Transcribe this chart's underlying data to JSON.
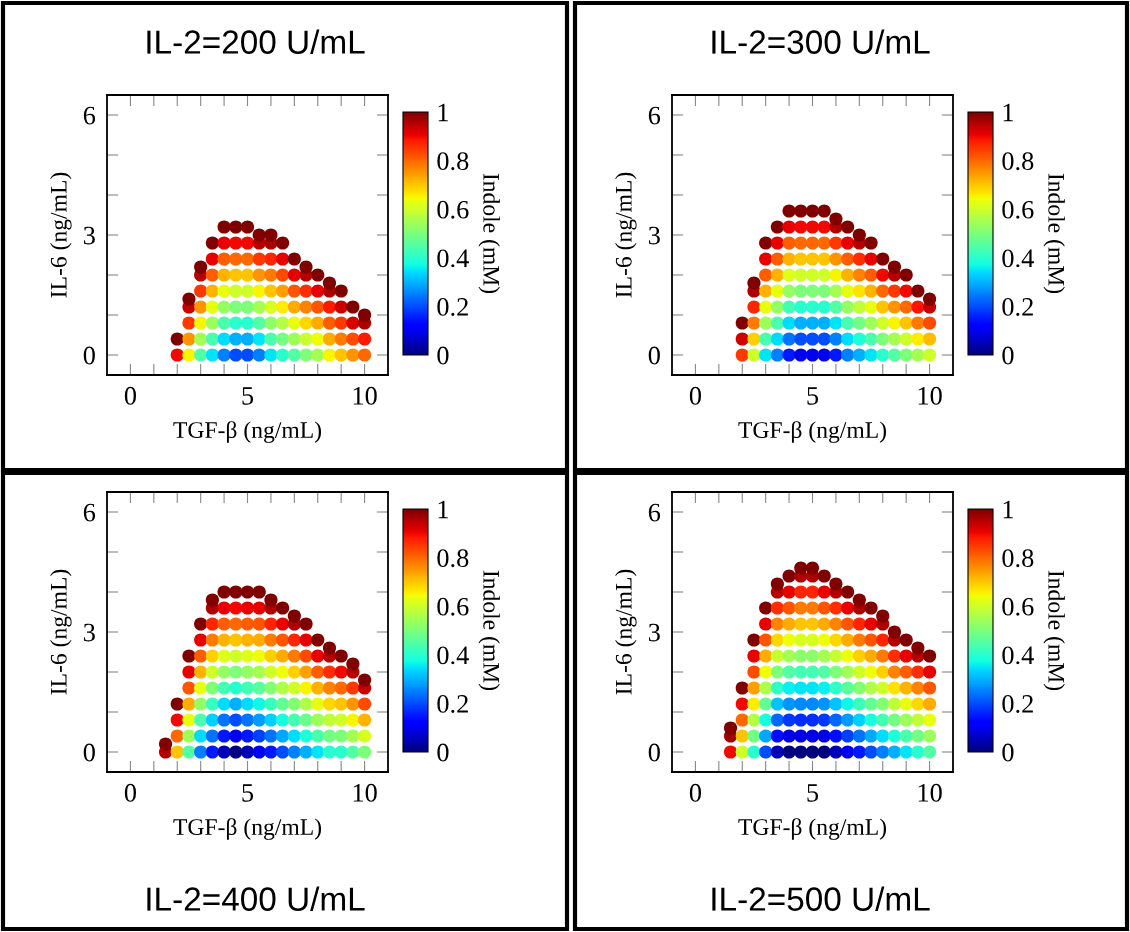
{
  "chart_data": [
    {
      "type": "scatter",
      "title": "IL-2=200 U/mL",
      "xlabel": "TGF-β (ng/mL)",
      "ylabel": "IL-6 (ng/mL)",
      "clabel": "Indole (mM)",
      "xlim": [
        -1,
        11
      ],
      "ylim": [
        -0.5,
        6.5
      ],
      "clim": [
        0,
        1
      ],
      "xticks": [
        0,
        {
          "value": 1,
          "label": null
        },
        {
          "value": 2,
          "label": null
        },
        {
          "value": 3,
          "label": null
        },
        {
          "value": 4,
          "label": null
        },
        5,
        {
          "value": 6,
          "label": null
        },
        {
          "value": 7,
          "label": null
        },
        {
          "value": 8,
          "label": null
        },
        {
          "value": 9,
          "label": null
        },
        10
      ],
      "yticks": [
        0,
        {
          "value": 1,
          "label": null
        },
        {
          "value": 2,
          "label": null
        },
        3,
        {
          "value": 4,
          "label": null
        },
        {
          "value": 5,
          "label": null
        },
        6
      ],
      "cticks": [
        0,
        0.2,
        0.4,
        0.6,
        0.8,
        1
      ],
      "x": [
        2,
        2,
        2.5,
        2.5,
        2.5,
        2.5,
        2.5,
        3,
        3,
        3,
        3,
        3,
        3,
        3,
        3.5,
        3.5,
        3.5,
        3.5,
        3.5,
        3.5,
        3.5,
        3.5,
        4,
        4,
        4,
        4,
        4,
        4,
        4,
        4,
        4,
        4.5,
        4.5,
        4.5,
        4.5,
        4.5,
        4.5,
        4.5,
        4.5,
        4.5,
        5,
        5,
        5,
        5,
        5,
        5,
        5,
        5,
        5,
        5.5,
        5.5,
        5.5,
        5.5,
        5.5,
        5.5,
        5.5,
        5.5,
        5.5,
        6,
        6,
        6,
        6,
        6,
        6,
        6,
        6,
        6,
        6.5,
        6.5,
        6.5,
        6.5,
        6.5,
        6.5,
        6.5,
        6.5,
        7,
        7,
        7,
        7,
        7,
        7,
        7,
        7.5,
        7.5,
        7.5,
        7.5,
        7.5,
        7.5,
        7.5,
        8,
        8,
        8,
        8,
        8,
        8,
        8.5,
        8.5,
        8.5,
        8.5,
        8.5,
        8.5,
        9,
        9,
        9,
        9,
        9,
        9.5,
        9.5,
        9.5,
        9.5,
        10,
        10,
        10,
        10
      ],
      "values": [
        0,
        0.4,
        0,
        0.4,
        0.8,
        1.2,
        1.4,
        0,
        0.4,
        0.8,
        1.2,
        1.6,
        2.0,
        2.2,
        0,
        0.4,
        0.8,
        1.2,
        1.6,
        2.0,
        2.4,
        2.8,
        0,
        0.4,
        0.8,
        1.2,
        1.6,
        2.0,
        2.4,
        2.8,
        3.2,
        0,
        0.4,
        0.8,
        1.2,
        1.6,
        2.0,
        2.4,
        2.8,
        3.2,
        0,
        0.4,
        0.8,
        1.2,
        1.6,
        2.0,
        2.4,
        2.8,
        3.2,
        0,
        0.4,
        0.8,
        1.2,
        1.6,
        2.0,
        2.4,
        2.8,
        3.0,
        0,
        0.4,
        0.8,
        1.2,
        1.6,
        2.0,
        2.4,
        2.8,
        3.0,
        0,
        0.4,
        0.8,
        1.2,
        1.6,
        2.0,
        2.4,
        2.8,
        0,
        0.4,
        0.8,
        1.2,
        1.6,
        2.0,
        2.4,
        0,
        0.4,
        0.8,
        1.2,
        1.6,
        2.0,
        2.2,
        0,
        0.4,
        0.8,
        1.2,
        1.6,
        2.0,
        0,
        0.4,
        0.8,
        1.2,
        1.6,
        1.8,
        0,
        0.4,
        0.8,
        1.2,
        1.6,
        0,
        0.4,
        0.8,
        1.2,
        0,
        0.4,
        0.8,
        1.0
      ],
      "cvalues": [
        0.9,
        1,
        0.65,
        0.75,
        0.85,
        0.94,
        1,
        0.45,
        0.55,
        0.65,
        0.75,
        0.85,
        0.95,
        1,
        0.35,
        0.44,
        0.54,
        0.63,
        0.72,
        0.81,
        0.91,
        1,
        0.25,
        0.34,
        0.44,
        0.53,
        0.63,
        0.72,
        0.81,
        0.91,
        1,
        0.2,
        0.3,
        0.4,
        0.5,
        0.6,
        0.7,
        0.8,
        0.9,
        1,
        0.2,
        0.3,
        0.4,
        0.5,
        0.6,
        0.7,
        0.8,
        0.9,
        1,
        0.25,
        0.35,
        0.45,
        0.55,
        0.65,
        0.75,
        0.85,
        0.95,
        1,
        0.35,
        0.44,
        0.52,
        0.61,
        0.7,
        0.78,
        0.87,
        0.96,
        1,
        0.4,
        0.49,
        0.57,
        0.66,
        0.74,
        0.83,
        0.91,
        1,
        0.45,
        0.54,
        0.63,
        0.73,
        0.82,
        0.91,
        1,
        0.5,
        0.59,
        0.68,
        0.77,
        0.86,
        0.95,
        1,
        0.55,
        0.64,
        0.73,
        0.82,
        0.91,
        1,
        0.65,
        0.73,
        0.81,
        0.88,
        0.96,
        1,
        0.7,
        0.78,
        0.85,
        0.93,
        1,
        0.75,
        0.83,
        0.92,
        1,
        0.8,
        0.88,
        0.96,
        1
      ]
    },
    {
      "type": "scatter",
      "title": "IL-2=300 U/mL",
      "xlabel": "TGF-β (ng/mL)",
      "ylabel": "IL-6 (ng/mL)",
      "clabel": "Indole (mM)",
      "xlim": [
        -1,
        11
      ],
      "ylim": [
        -0.5,
        6.5
      ],
      "clim": [
        0,
        1
      ],
      "xticks": [
        0,
        {
          "value": 1,
          "label": null
        },
        {
          "value": 2,
          "label": null
        },
        {
          "value": 3,
          "label": null
        },
        {
          "value": 4,
          "label": null
        },
        5,
        {
          "value": 6,
          "label": null
        },
        {
          "value": 7,
          "label": null
        },
        {
          "value": 8,
          "label": null
        },
        {
          "value": 9,
          "label": null
        },
        10
      ],
      "yticks": [
        0,
        {
          "value": 1,
          "label": null
        },
        {
          "value": 2,
          "label": null
        },
        3,
        {
          "value": 4,
          "label": null
        },
        {
          "value": 5,
          "label": null
        },
        6
      ],
      "cticks": [
        0,
        0.2,
        0.4,
        0.6,
        0.8,
        1
      ],
      "x": [
        2,
        2,
        2,
        2.5,
        2.5,
        2.5,
        2.5,
        2.5,
        2.5,
        3,
        3,
        3,
        3,
        3,
        3,
        3,
        3,
        3.5,
        3.5,
        3.5,
        3.5,
        3.5,
        3.5,
        3.5,
        3.5,
        3.5,
        4,
        4,
        4,
        4,
        4,
        4,
        4,
        4,
        4,
        4,
        4.5,
        4.5,
        4.5,
        4.5,
        4.5,
        4.5,
        4.5,
        4.5,
        4.5,
        4.5,
        5,
        5,
        5,
        5,
        5,
        5,
        5,
        5,
        5,
        5,
        5.5,
        5.5,
        5.5,
        5.5,
        5.5,
        5.5,
        5.5,
        5.5,
        5.5,
        5.5,
        6,
        6,
        6,
        6,
        6,
        6,
        6,
        6,
        6,
        6,
        6.5,
        6.5,
        6.5,
        6.5,
        6.5,
        6.5,
        6.5,
        6.5,
        6.5,
        7,
        7,
        7,
        7,
        7,
        7,
        7,
        7,
        7,
        7.5,
        7.5,
        7.5,
        7.5,
        7.5,
        7.5,
        7.5,
        7.5,
        8,
        8,
        8,
        8,
        8,
        8,
        8,
        8.5,
        8.5,
        8.5,
        8.5,
        8.5,
        8.5,
        8.5,
        9,
        9,
        9,
        9,
        9,
        9,
        9.5,
        9.5,
        9.5,
        9.5,
        9.5,
        10,
        10,
        10,
        10,
        10
      ],
      "values": [
        0,
        0.4,
        0.8,
        0,
        0.4,
        0.8,
        1.2,
        1.6,
        1.8,
        0,
        0.4,
        0.8,
        1.2,
        1.6,
        2.0,
        2.4,
        2.8,
        0,
        0.4,
        0.8,
        1.2,
        1.6,
        2.0,
        2.4,
        2.8,
        3.2,
        0,
        0.4,
        0.8,
        1.2,
        1.6,
        2.0,
        2.4,
        2.8,
        3.2,
        3.6,
        0,
        0.4,
        0.8,
        1.2,
        1.6,
        2.0,
        2.4,
        2.8,
        3.2,
        3.6,
        0,
        0.4,
        0.8,
        1.2,
        1.6,
        2.0,
        2.4,
        2.8,
        3.2,
        3.6,
        0,
        0.4,
        0.8,
        1.2,
        1.6,
        2.0,
        2.4,
        2.8,
        3.2,
        3.6,
        0,
        0.4,
        0.8,
        1.2,
        1.6,
        2.0,
        2.4,
        2.8,
        3.2,
        3.4,
        0,
        0.4,
        0.8,
        1.2,
        1.6,
        2.0,
        2.4,
        2.8,
        3.2,
        0,
        0.4,
        0.8,
        1.2,
        1.6,
        2.0,
        2.4,
        2.8,
        3.0,
        0,
        0.4,
        0.8,
        1.2,
        1.6,
        2.0,
        2.4,
        2.8,
        0,
        0.4,
        0.8,
        1.2,
        1.6,
        2.0,
        2.4,
        0,
        0.4,
        0.8,
        1.2,
        1.6,
        2.0,
        2.2,
        0,
        0.4,
        0.8,
        1.2,
        1.6,
        2.0,
        0,
        0.4,
        0.8,
        1.2,
        1.6,
        0,
        0.4,
        0.8,
        1.2,
        1.4
      ],
      "cvalues": [
        0.85,
        0.93,
        1,
        0.6,
        0.69,
        0.78,
        0.87,
        0.96,
        1,
        0.35,
        0.44,
        0.54,
        0.63,
        0.72,
        0.81,
        0.91,
        1,
        0.25,
        0.34,
        0.44,
        0.53,
        0.63,
        0.72,
        0.81,
        0.91,
        1,
        0.15,
        0.24,
        0.34,
        0.43,
        0.53,
        0.62,
        0.72,
        0.81,
        0.91,
        1,
        0.1,
        0.2,
        0.3,
        0.4,
        0.5,
        0.6,
        0.7,
        0.8,
        0.9,
        1,
        0.1,
        0.2,
        0.3,
        0.4,
        0.5,
        0.6,
        0.7,
        0.8,
        0.9,
        1,
        0.1,
        0.2,
        0.3,
        0.4,
        0.5,
        0.6,
        0.7,
        0.8,
        0.9,
        1,
        0.15,
        0.25,
        0.35,
        0.45,
        0.55,
        0.65,
        0.75,
        0.85,
        0.95,
        1,
        0.25,
        0.34,
        0.44,
        0.53,
        0.63,
        0.72,
        0.81,
        0.91,
        1,
        0.3,
        0.39,
        0.49,
        0.58,
        0.67,
        0.77,
        0.86,
        0.95,
        1,
        0.35,
        0.44,
        0.54,
        0.63,
        0.72,
        0.81,
        0.91,
        1,
        0.4,
        0.5,
        0.6,
        0.7,
        0.8,
        0.9,
        1,
        0.45,
        0.55,
        0.65,
        0.75,
        0.85,
        0.95,
        1,
        0.5,
        0.6,
        0.7,
        0.8,
        0.9,
        1,
        0.55,
        0.66,
        0.78,
        0.89,
        1,
        0.6,
        0.71,
        0.83,
        0.94,
        1
      ]
    },
    {
      "type": "scatter",
      "title": "IL-2=400 U/mL",
      "xlabel": "TGF-β (ng/mL)",
      "ylabel": "IL-6 (ng/mL)",
      "clabel": "Indole (mM)",
      "xlim": [
        -1,
        11
      ],
      "ylim": [
        -0.5,
        6.5
      ],
      "clim": [
        0,
        1
      ],
      "xticks": [
        0,
        {
          "value": 1,
          "label": null
        },
        {
          "value": 2,
          "label": null
        },
        {
          "value": 3,
          "label": null
        },
        {
          "value": 4,
          "label": null
        },
        5,
        {
          "value": 6,
          "label": null
        },
        {
          "value": 7,
          "label": null
        },
        {
          "value": 8,
          "label": null
        },
        {
          "value": 9,
          "label": null
        },
        10
      ],
      "yticks": [
        0,
        {
          "value": 1,
          "label": null
        },
        {
          "value": 2,
          "label": null
        },
        3,
        {
          "value": 4,
          "label": null
        },
        {
          "value": 5,
          "label": null
        },
        6
      ],
      "cticks": [
        0,
        0.2,
        0.4,
        0.6,
        0.8,
        1
      ],
      "x": [
        1.5,
        1.5,
        2,
        2,
        2,
        2,
        2.5,
        2.5,
        2.5,
        2.5,
        2.5,
        2.5,
        2.5,
        3,
        3,
        3,
        3,
        3,
        3,
        3,
        3,
        3,
        3.5,
        3.5,
        3.5,
        3.5,
        3.5,
        3.5,
        3.5,
        3.5,
        3.5,
        3.5,
        3.5,
        4,
        4,
        4,
        4,
        4,
        4,
        4,
        4,
        4,
        4,
        4,
        4.5,
        4.5,
        4.5,
        4.5,
        4.5,
        4.5,
        4.5,
        4.5,
        4.5,
        4.5,
        4.5,
        5,
        5,
        5,
        5,
        5,
        5,
        5,
        5,
        5,
        5,
        5,
        5.5,
        5.5,
        5.5,
        5.5,
        5.5,
        5.5,
        5.5,
        5.5,
        5.5,
        5.5,
        5.5,
        6,
        6,
        6,
        6,
        6,
        6,
        6,
        6,
        6,
        6,
        6,
        6.5,
        6.5,
        6.5,
        6.5,
        6.5,
        6.5,
        6.5,
        6.5,
        6.5,
        6.5,
        7,
        7,
        7,
        7,
        7,
        7,
        7,
        7,
        7,
        7,
        7.5,
        7.5,
        7.5,
        7.5,
        7.5,
        7.5,
        7.5,
        7.5,
        7.5,
        8,
        8,
        8,
        8,
        8,
        8,
        8,
        8,
        8.5,
        8.5,
        8.5,
        8.5,
        8.5,
        8.5,
        8.5,
        8.5,
        9,
        9,
        9,
        9,
        9,
        9,
        9,
        9.5,
        9.5,
        9.5,
        9.5,
        9.5,
        9.5,
        9.5,
        10,
        10,
        10,
        10,
        10,
        10
      ],
      "values": [
        0,
        0.2,
        0,
        0.4,
        0.8,
        1.2,
        0,
        0.4,
        0.8,
        1.2,
        1.6,
        2.0,
        2.4,
        0,
        0.4,
        0.8,
        1.2,
        1.6,
        2.0,
        2.4,
        2.8,
        3.2,
        0,
        0.4,
        0.8,
        1.2,
        1.6,
        2.0,
        2.4,
        2.8,
        3.2,
        3.6,
        3.8,
        0,
        0.4,
        0.8,
        1.2,
        1.6,
        2.0,
        2.4,
        2.8,
        3.2,
        3.6,
        4.0,
        0,
        0.4,
        0.8,
        1.2,
        1.6,
        2.0,
        2.4,
        2.8,
        3.2,
        3.6,
        4.0,
        0,
        0.4,
        0.8,
        1.2,
        1.6,
        2.0,
        2.4,
        2.8,
        3.2,
        3.6,
        4.0,
        0,
        0.4,
        0.8,
        1.2,
        1.6,
        2.0,
        2.4,
        2.8,
        3.2,
        3.6,
        4.0,
        0,
        0.4,
        0.8,
        1.2,
        1.6,
        2.0,
        2.4,
        2.8,
        3.2,
        3.6,
        3.8,
        0,
        0.4,
        0.8,
        1.2,
        1.6,
        2.0,
        2.4,
        2.8,
        3.2,
        3.6,
        0,
        0.4,
        0.8,
        1.2,
        1.6,
        2.0,
        2.4,
        2.8,
        3.2,
        3.4,
        0,
        0.4,
        0.8,
        1.2,
        1.6,
        2.0,
        2.4,
        2.8,
        3.2,
        0,
        0.4,
        0.8,
        1.2,
        1.6,
        2.0,
        2.4,
        2.8,
        0,
        0.4,
        0.8,
        1.2,
        1.6,
        2.0,
        2.4,
        2.6,
        0,
        0.4,
        0.8,
        1.2,
        1.6,
        2.0,
        2.4,
        0,
        0.4,
        0.8,
        1.2,
        1.6,
        2.0,
        2.2,
        0,
        0.4,
        0.8,
        1.2,
        1.6,
        1.8
      ],
      "cvalues": [
        0.95,
        1,
        0.7,
        0.8,
        0.9,
        1,
        0.45,
        0.54,
        0.63,
        0.73,
        0.82,
        0.91,
        1,
        0.25,
        0.34,
        0.44,
        0.53,
        0.63,
        0.72,
        0.81,
        0.91,
        1,
        0.15,
        0.24,
        0.33,
        0.42,
        0.51,
        0.6,
        0.69,
        0.78,
        0.87,
        0.96,
        1,
        0.05,
        0.15,
        0.24,
        0.34,
        0.43,
        0.53,
        0.62,
        0.72,
        0.81,
        0.91,
        1,
        0,
        0.1,
        0.2,
        0.3,
        0.4,
        0.5,
        0.6,
        0.7,
        0.8,
        0.9,
        1,
        0.05,
        0.15,
        0.24,
        0.34,
        0.43,
        0.53,
        0.62,
        0.72,
        0.81,
        0.91,
        1,
        0.1,
        0.19,
        0.28,
        0.37,
        0.46,
        0.55,
        0.64,
        0.73,
        0.82,
        0.91,
        1,
        0.15,
        0.24,
        0.33,
        0.42,
        0.51,
        0.6,
        0.69,
        0.78,
        0.87,
        0.96,
        1,
        0.2,
        0.29,
        0.38,
        0.47,
        0.56,
        0.64,
        0.73,
        0.82,
        0.91,
        1,
        0.25,
        0.34,
        0.43,
        0.51,
        0.6,
        0.69,
        0.78,
        0.87,
        0.96,
        1,
        0.3,
        0.39,
        0.48,
        0.56,
        0.65,
        0.74,
        0.83,
        0.91,
        1,
        0.35,
        0.44,
        0.54,
        0.63,
        0.72,
        0.81,
        0.91,
        1,
        0.4,
        0.49,
        0.58,
        0.68,
        0.77,
        0.86,
        0.95,
        1,
        0.4,
        0.5,
        0.6,
        0.7,
        0.8,
        0.9,
        1,
        0.45,
        0.55,
        0.65,
        0.75,
        0.85,
        0.95,
        1,
        0.5,
        0.61,
        0.72,
        0.83,
        0.94,
        1
      ]
    },
    {
      "type": "scatter",
      "title": "IL-2=500 U/mL",
      "xlabel": "TGF-β (ng/mL)",
      "ylabel": "IL-6 (ng/mL)",
      "clabel": "Indole (mM)",
      "xlim": [
        -1,
        11
      ],
      "ylim": [
        -0.5,
        6.5
      ],
      "clim": [
        0,
        1
      ],
      "xticks": [
        0,
        {
          "value": 1,
          "label": null
        },
        {
          "value": 2,
          "label": null
        },
        {
          "value": 3,
          "label": null
        },
        {
          "value": 4,
          "label": null
        },
        5,
        {
          "value": 6,
          "label": null
        },
        {
          "value": 7,
          "label": null
        },
        {
          "value": 8,
          "label": null
        },
        {
          "value": 9,
          "label": null
        },
        10
      ],
      "yticks": [
        0,
        {
          "value": 1,
          "label": null
        },
        {
          "value": 2,
          "label": null
        },
        3,
        {
          "value": 4,
          "label": null
        },
        {
          "value": 5,
          "label": null
        },
        6
      ],
      "cticks": [
        0,
        0.2,
        0.4,
        0.6,
        0.8,
        1
      ],
      "x": [
        1.5,
        1.5,
        1.5,
        2,
        2,
        2,
        2,
        2,
        2.5,
        2.5,
        2.5,
        2.5,
        2.5,
        2.5,
        2.5,
        2.5,
        3,
        3,
        3,
        3,
        3,
        3,
        3,
        3,
        3,
        3,
        3.5,
        3.5,
        3.5,
        3.5,
        3.5,
        3.5,
        3.5,
        3.5,
        3.5,
        3.5,
        3.5,
        3.5,
        4,
        4,
        4,
        4,
        4,
        4,
        4,
        4,
        4,
        4,
        4,
        4,
        4.5,
        4.5,
        4.5,
        4.5,
        4.5,
        4.5,
        4.5,
        4.5,
        4.5,
        4.5,
        4.5,
        4.5,
        4.5,
        5,
        5,
        5,
        5,
        5,
        5,
        5,
        5,
        5,
        5,
        5,
        5,
        5,
        5.5,
        5.5,
        5.5,
        5.5,
        5.5,
        5.5,
        5.5,
        5.5,
        5.5,
        5.5,
        5.5,
        5.5,
        6,
        6,
        6,
        6,
        6,
        6,
        6,
        6,
        6,
        6,
        6,
        6,
        6.5,
        6.5,
        6.5,
        6.5,
        6.5,
        6.5,
        6.5,
        6.5,
        6.5,
        6.5,
        6.5,
        7,
        7,
        7,
        7,
        7,
        7,
        7,
        7,
        7,
        7,
        7,
        7.5,
        7.5,
        7.5,
        7.5,
        7.5,
        7.5,
        7.5,
        7.5,
        7.5,
        7.5,
        8,
        8,
        8,
        8,
        8,
        8,
        8,
        8,
        8,
        8,
        8.5,
        8.5,
        8.5,
        8.5,
        8.5,
        8.5,
        8.5,
        8.5,
        8.5,
        9,
        9,
        9,
        9,
        9,
        9,
        9,
        9,
        9.5,
        9.5,
        9.5,
        9.5,
        9.5,
        9.5,
        9.5,
        9.5,
        10,
        10,
        10,
        10,
        10,
        10,
        10
      ],
      "values": [
        0,
        0.4,
        0.6,
        0,
        0.4,
        0.8,
        1.2,
        1.6,
        0,
        0.4,
        0.8,
        1.2,
        1.6,
        2.0,
        2.4,
        2.8,
        0,
        0.4,
        0.8,
        1.2,
        1.6,
        2.0,
        2.4,
        2.8,
        3.2,
        3.6,
        0,
        0.4,
        0.8,
        1.2,
        1.6,
        2.0,
        2.4,
        2.8,
        3.2,
        3.6,
        4.0,
        4.2,
        0,
        0.4,
        0.8,
        1.2,
        1.6,
        2.0,
        2.4,
        2.8,
        3.2,
        3.6,
        4.0,
        4.4,
        0,
        0.4,
        0.8,
        1.2,
        1.6,
        2.0,
        2.4,
        2.8,
        3.2,
        3.6,
        4.0,
        4.4,
        4.6,
        0,
        0.4,
        0.8,
        1.2,
        1.6,
        2.0,
        2.4,
        2.8,
        3.2,
        3.6,
        4.0,
        4.4,
        4.6,
        0,
        0.4,
        0.8,
        1.2,
        1.6,
        2.0,
        2.4,
        2.8,
        3.2,
        3.6,
        4.0,
        4.4,
        0,
        0.4,
        0.8,
        1.2,
        1.6,
        2.0,
        2.4,
        2.8,
        3.2,
        3.6,
        4.0,
        4.2,
        0,
        0.4,
        0.8,
        1.2,
        1.6,
        2.0,
        2.4,
        2.8,
        3.2,
        3.6,
        4.0,
        0,
        0.4,
        0.8,
        1.2,
        1.6,
        2.0,
        2.4,
        2.8,
        3.2,
        3.6,
        3.8,
        0,
        0.4,
        0.8,
        1.2,
        1.6,
        2.0,
        2.4,
        2.8,
        3.2,
        3.6,
        0,
        0.4,
        0.8,
        1.2,
        1.6,
        2.0,
        2.4,
        2.8,
        3.2,
        3.4,
        0,
        0.4,
        0.8,
        1.2,
        1.6,
        2.0,
        2.4,
        2.8,
        3.0,
        0,
        0.4,
        0.8,
        1.2,
        1.6,
        2.0,
        2.4,
        2.8,
        0,
        0.4,
        0.8,
        1.2,
        1.6,
        2.0,
        2.4,
        2.6,
        0,
        0.4,
        0.8,
        1.2,
        1.6,
        2.0,
        2.4
      ],
      "cvalues": [
        0.9,
        0.97,
        1,
        0.6,
        0.7,
        0.8,
        0.9,
        1,
        0.4,
        0.49,
        0.57,
        0.66,
        0.74,
        0.83,
        0.91,
        1,
        0.2,
        0.29,
        0.38,
        0.47,
        0.56,
        0.64,
        0.73,
        0.82,
        0.91,
        1,
        0.05,
        0.14,
        0.23,
        0.32,
        0.41,
        0.5,
        0.59,
        0.68,
        0.77,
        0.86,
        0.95,
        1,
        0,
        0.09,
        0.18,
        0.27,
        0.36,
        0.45,
        0.55,
        0.64,
        0.73,
        0.82,
        0.91,
        1,
        0,
        0.09,
        0.17,
        0.26,
        0.35,
        0.43,
        0.52,
        0.61,
        0.7,
        0.78,
        0.87,
        0.96,
        1,
        0,
        0.09,
        0.17,
        0.26,
        0.35,
        0.43,
        0.52,
        0.61,
        0.7,
        0.78,
        0.87,
        0.96,
        1,
        0,
        0.09,
        0.18,
        0.27,
        0.36,
        0.45,
        0.55,
        0.64,
        0.73,
        0.82,
        0.91,
        1,
        0.05,
        0.14,
        0.23,
        0.32,
        0.41,
        0.5,
        0.59,
        0.68,
        0.77,
        0.86,
        0.95,
        1,
        0.1,
        0.19,
        0.28,
        0.37,
        0.46,
        0.55,
        0.64,
        0.73,
        0.82,
        0.91,
        1,
        0.15,
        0.24,
        0.33,
        0.42,
        0.51,
        0.6,
        0.69,
        0.78,
        0.87,
        0.96,
        1,
        0.2,
        0.29,
        0.38,
        0.47,
        0.56,
        0.64,
        0.73,
        0.82,
        0.91,
        1,
        0.25,
        0.34,
        0.43,
        0.51,
        0.6,
        0.69,
        0.78,
        0.87,
        0.96,
        1,
        0.3,
        0.39,
        0.49,
        0.58,
        0.67,
        0.77,
        0.86,
        0.95,
        1,
        0.35,
        0.44,
        0.54,
        0.63,
        0.72,
        0.81,
        0.91,
        1,
        0.4,
        0.49,
        0.58,
        0.68,
        0.77,
        0.86,
        0.95,
        1,
        0.45,
        0.54,
        0.63,
        0.73,
        0.82,
        0.91,
        1
      ]
    }
  ]
}
